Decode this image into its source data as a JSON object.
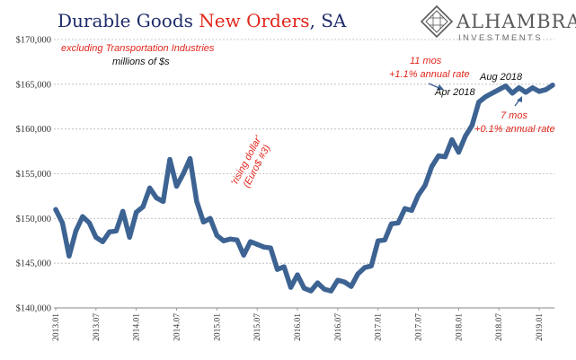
{
  "header": {
    "title_part1": "Durable Goods ",
    "title_part2": "New Orders",
    "title_part3": ", SA",
    "subtitle": "excluding Transportation  Industries",
    "units": "millions of $s"
  },
  "logo": {
    "name": "ALHAMBRA",
    "sub": "INVESTMENTS",
    "icon": "alhambra-diamond-logo-icon"
  },
  "colors": {
    "line": "#3d6393",
    "title": "#1f2d6b",
    "accent": "#e1261c",
    "grid": "#b8b8b8",
    "logo": "#5a5a5a"
  },
  "annotations": {
    "rising_dollar": "'rising dollar'",
    "euro_dollar": "(Euro$ #3)",
    "eleven_mos": "11 mos",
    "eleven_rate": "+1.1% annual rate",
    "apr_2018": "Apr 2018",
    "aug_2018": "Aug 2018",
    "seven_mos": "7 mos",
    "seven_rate": "+0.1% annual rate"
  },
  "chart_data": {
    "type": "line",
    "title": "Durable Goods New Orders, SA",
    "subtitle": "excluding Transportation  Industries",
    "ylabel": "millions of $s",
    "ylim": [
      140000,
      170000
    ],
    "yticks": [
      140000,
      145000,
      150000,
      155000,
      160000,
      165000,
      170000
    ],
    "ytick_labels": [
      "$140,000",
      "$145,000",
      "$150,000",
      "$155,000",
      "$160,000",
      "$165,000",
      "$170,000"
    ],
    "xticks": [
      "2013.01",
      "2013.07",
      "2014.01",
      "2014.07",
      "2015.01",
      "2015.07",
      "2016.01",
      "2016.07",
      "2017.01",
      "2017.07",
      "2018.01",
      "2018.07",
      "2019.01"
    ],
    "grid": true,
    "series": [
      {
        "x": [
          "2013.01",
          "2013.02",
          "2013.03",
          "2013.04",
          "2013.05",
          "2013.06",
          "2013.07",
          "2013.08",
          "2013.09",
          "2013.10",
          "2013.11",
          "2013.12",
          "2014.01",
          "2014.02",
          "2014.03",
          "2014.04",
          "2014.05",
          "2014.06",
          "2014.07",
          "2014.08",
          "2014.09",
          "2014.10",
          "2014.11",
          "2014.12",
          "2015.01",
          "2015.02",
          "2015.03",
          "2015.04",
          "2015.05",
          "2015.06",
          "2015.07",
          "2015.08",
          "2015.09",
          "2015.10",
          "2015.11",
          "2015.12",
          "2016.01",
          "2016.02",
          "2016.03",
          "2016.04",
          "2016.05",
          "2016.06",
          "2016.07",
          "2016.08",
          "2016.09",
          "2016.10",
          "2016.11",
          "2016.12",
          "2017.01",
          "2017.02",
          "2017.03",
          "2017.04",
          "2017.05",
          "2017.06",
          "2017.07",
          "2017.08",
          "2017.09",
          "2017.10",
          "2017.11",
          "2017.12",
          "2018.01",
          "2018.02",
          "2018.03",
          "2018.04",
          "2018.05",
          "2018.06",
          "2018.07",
          "2018.08",
          "2018.09",
          "2018.10",
          "2018.11",
          "2018.12",
          "2019.01",
          "2019.02",
          "2019.03"
        ],
        "values": [
          151000,
          149500,
          145800,
          148600,
          150200,
          149500,
          147900,
          147400,
          148500,
          148600,
          150800,
          147900,
          150700,
          151300,
          153400,
          152300,
          151900,
          156600,
          153600,
          155000,
          156700,
          151900,
          149600,
          150000,
          148100,
          147500,
          147700,
          147600,
          145900,
          147400,
          147100,
          146800,
          146700,
          144300,
          144600,
          142300,
          143700,
          142200,
          141900,
          142800,
          142100,
          141900,
          143100,
          142900,
          142400,
          143800,
          144500,
          144700,
          147500,
          147600,
          149400,
          149500,
          151100,
          150900,
          152600,
          153700,
          155800,
          157000,
          156900,
          158800,
          157400,
          159200,
          160400,
          163000,
          163600,
          164000,
          164400,
          164800,
          164000,
          164600,
          164100,
          164600,
          164200,
          164400,
          164900
        ]
      }
    ]
  }
}
